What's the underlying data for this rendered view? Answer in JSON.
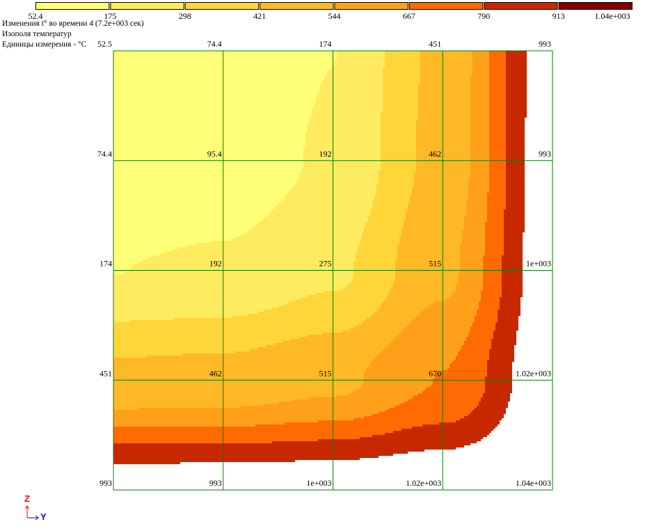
{
  "header": {
    "line1": "Изменения t° во времени 4 (7.2e+003 сек)",
    "line2": "Изополя температур",
    "line3": "Единицы измерения - °C"
  },
  "legend": {
    "labels": [
      "52.4",
      "175",
      "298",
      "421",
      "544",
      "667",
      "790",
      "913",
      "1.04e+003"
    ],
    "colors": [
      "#ffff78",
      "#ffeb5f",
      "#ffd63a",
      "#ffb826",
      "#ffa01a",
      "#ff6b00",
      "#c82800",
      "#800000"
    ]
  },
  "axes": {
    "vertical": "Z",
    "horizontal": "Y",
    "z_color": "#ff0000",
    "y_color": "#0000ff"
  },
  "chart_data": {
    "type": "heatmap",
    "title": "Изменения t° во времени 4 (7.2e+003 сек)",
    "subtitle": "Изополя температур",
    "units": "°C",
    "levels": [
      52.4,
      175,
      298,
      421,
      544,
      667,
      790,
      913,
      1040
    ],
    "node_labels": [
      [
        "52.5",
        "74.4",
        "174",
        "451",
        "993"
      ],
      [
        "74.4",
        "95.4",
        "192",
        "462",
        "993"
      ],
      [
        "174",
        "192",
        "275",
        "515",
        "1e+003"
      ],
      [
        "451",
        "462",
        "515",
        "670",
        "1.02e+003"
      ],
      [
        "993",
        "993",
        "1e+003",
        "1.02e+003",
        "1.04e+003"
      ]
    ],
    "grid_color": "#008000"
  }
}
